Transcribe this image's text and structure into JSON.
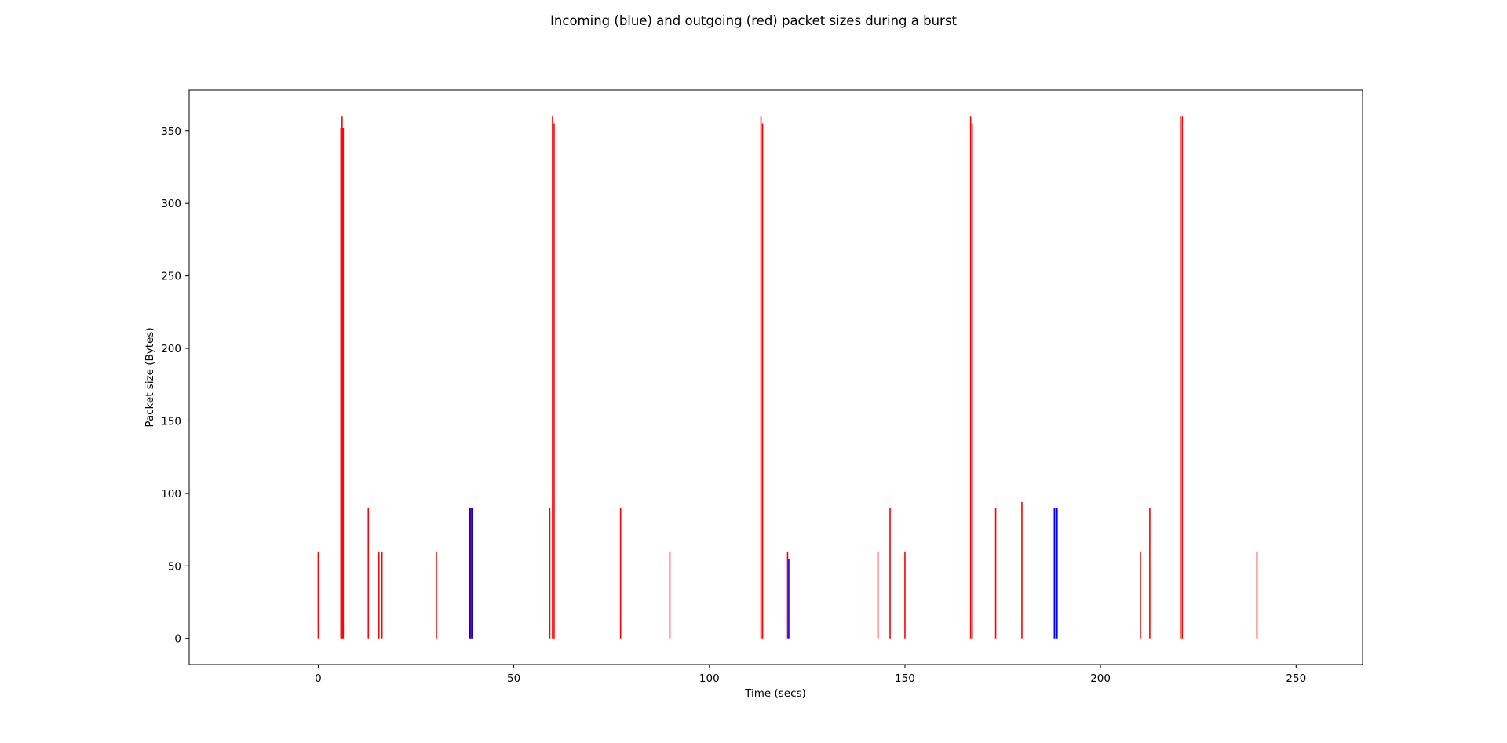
{
  "chart_data": {
    "type": "bar",
    "title": "Incoming (blue) and outgoing (red) packet sizes during a burst",
    "xlabel": "Time (secs)",
    "ylabel": "Packet size (Bytes)",
    "xlim": [
      -33,
      267
    ],
    "ylim": [
      -18,
      378
    ],
    "xticks": [
      0,
      50,
      100,
      150,
      200,
      250
    ],
    "yticks": [
      0,
      50,
      100,
      150,
      200,
      250,
      300,
      350
    ],
    "grid": false,
    "colors": {
      "incoming": "#0000ff",
      "outgoing": "#ff0000"
    },
    "series": [
      {
        "key": "outgoing",
        "x": [
          0,
          5.8,
          6.1,
          6.4,
          12.8,
          15.5,
          16.3,
          30.2,
          39.0,
          59.2,
          59.9,
          60.3,
          77.3,
          89.9,
          113.2,
          113.6,
          120.0,
          143.1,
          146.2,
          150.0,
          166.8,
          167.2,
          173.2,
          179.9,
          188.6,
          210.2,
          212.6,
          220.4,
          220.9,
          240.0
        ],
        "values": [
          60,
          352,
          360,
          352,
          90,
          60,
          60,
          60,
          90,
          90,
          360,
          355,
          90,
          60,
          360,
          355,
          60,
          60,
          90,
          60,
          360,
          355,
          90,
          94,
          90,
          60,
          90,
          360,
          360,
          60
        ]
      },
      {
        "key": "incoming",
        "x": [
          38.8,
          39.3,
          120.3,
          188.2,
          188.9
        ],
        "values": [
          90,
          90,
          55,
          90,
          90
        ]
      }
    ]
  }
}
